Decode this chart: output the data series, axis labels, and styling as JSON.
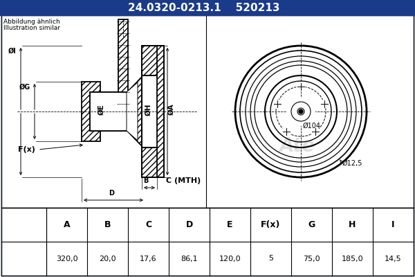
{
  "part_number": "24.0320-0213.1",
  "code": "520213",
  "header_bg": "#1a3a8a",
  "header_text_color": "#ffffff",
  "body_bg": "#e0e8f0",
  "drawing_bg": "#ffffff",
  "table_headers": [
    "A",
    "B",
    "C",
    "D",
    "E",
    "F(x)",
    "G",
    "H",
    "I"
  ],
  "table_values": [
    "320,0",
    "20,0",
    "17,6",
    "86,1",
    "120,0",
    "5",
    "75,0",
    "185,0",
    "14,5"
  ],
  "note_line1": "Abbildung ähnlich",
  "note_line2": "Illustration similar",
  "annotation_104": "Ø104",
  "annotation_125": "Ø12,5"
}
